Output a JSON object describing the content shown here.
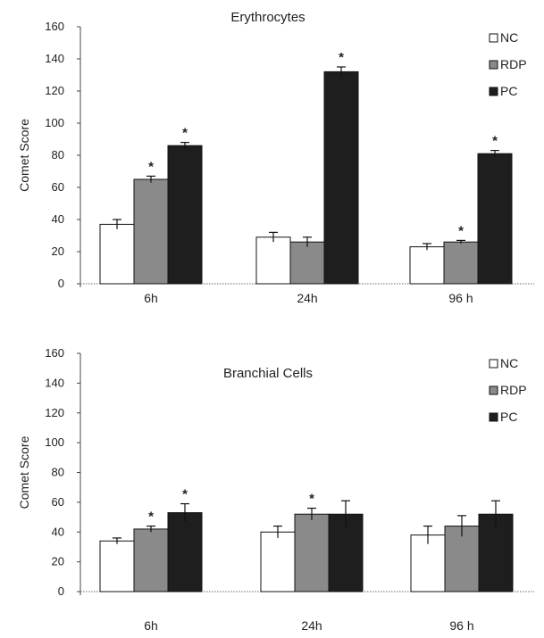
{
  "chart_data": [
    {
      "type": "bar",
      "title": "Erythrocytes",
      "ylabel": "Comet Score",
      "xlabel": "",
      "categories": [
        "6h",
        "24h",
        "96 h"
      ],
      "ylim": [
        0,
        160
      ],
      "yticks": [
        0,
        20,
        40,
        60,
        80,
        100,
        120,
        140,
        160
      ],
      "legend_position": "top-right",
      "grid": false,
      "series": [
        {
          "name": "NC",
          "values": [
            37,
            29,
            23
          ],
          "errors": [
            3,
            3,
            2
          ],
          "color": "#ffffff",
          "significance": [
            "",
            "",
            ""
          ]
        },
        {
          "name": "RDP",
          "values": [
            65,
            26,
            26
          ],
          "errors": [
            2,
            3,
            1
          ],
          "color": "#8a8a8a",
          "significance": [
            "*",
            "",
            "*"
          ]
        },
        {
          "name": "PC",
          "values": [
            86,
            132,
            81
          ],
          "errors": [
            2,
            3,
            2
          ],
          "color": "#1e1e1e",
          "significance": [
            "*",
            "*",
            "*"
          ]
        }
      ]
    },
    {
      "type": "bar",
      "title": "Branchial Cells",
      "ylabel": "Comet Score",
      "xlabel": "",
      "categories": [
        "6h",
        "24h",
        "96 h"
      ],
      "ylim": [
        0,
        160
      ],
      "yticks": [
        0,
        20,
        40,
        60,
        80,
        100,
        120,
        140,
        160
      ],
      "legend_position": "top-right",
      "grid": false,
      "series": [
        {
          "name": "NC",
          "values": [
            34,
            40,
            38
          ],
          "errors": [
            2,
            4,
            6
          ],
          "color": "#ffffff",
          "significance": [
            "",
            "",
            ""
          ]
        },
        {
          "name": "RDP",
          "values": [
            42,
            52,
            44
          ],
          "errors": [
            2,
            4,
            7
          ],
          "color": "#8a8a8a",
          "significance": [
            "*",
            "*",
            ""
          ]
        },
        {
          "name": "PC",
          "values": [
            53,
            52,
            52
          ],
          "errors": [
            6,
            9,
            9
          ],
          "color": "#1e1e1e",
          "significance": [
            "*",
            "",
            ""
          ]
        }
      ]
    }
  ]
}
